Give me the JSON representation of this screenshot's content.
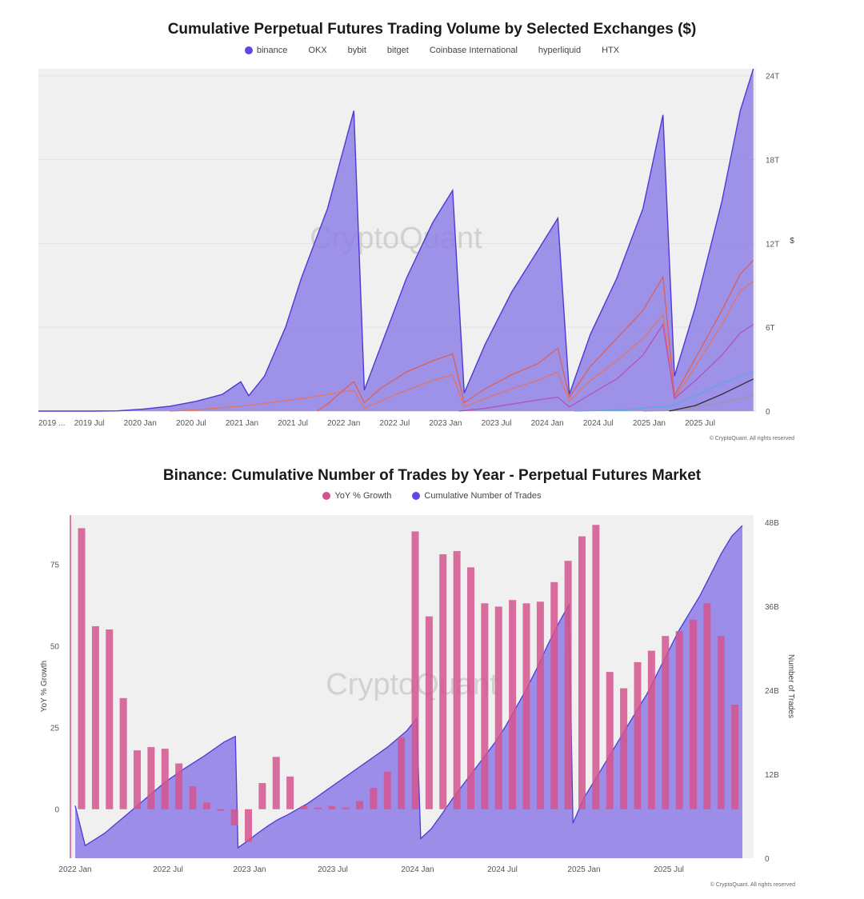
{
  "chart_data": [
    {
      "type": "area",
      "title": "Cumulative Perpetual Futures Trading Volume by Selected Exchanges ($)",
      "legend": [
        "binance",
        "OKX",
        "bybit",
        "bitget",
        "Coinbase International",
        "hyperliquid",
        "HTX"
      ],
      "x_tick_labels": [
        "2019 ...",
        "2019 Jul",
        "2020 Jan",
        "2020 Jul",
        "2021 Jan",
        "2021 Jul",
        "2022 Jan",
        "2022 Jul",
        "2023 Jan",
        "2023 Jul",
        "2024 Jan",
        "2024 Jul",
        "2025 Jan",
        "2025 Jul"
      ],
      "y_tick_labels": [
        "0",
        "6T",
        "12T",
        "18T",
        "24T"
      ],
      "ylim": [
        0,
        24.5
      ],
      "ylabel": "$",
      "watermark": "CryptoQuant",
      "credit": "© CryptoQuant. All rights reserved",
      "x_range": [
        0,
        13.65
      ],
      "series": [
        {
          "name": "binance",
          "color": "#5b48e6",
          "type": "area",
          "points": [
            [
              0,
              0
            ],
            [
              1,
              0
            ],
            [
              1.5,
              0.02
            ],
            [
              2,
              0.15
            ],
            [
              2.5,
              0.35
            ],
            [
              3,
              0.7
            ],
            [
              3.5,
              1.2
            ],
            [
              3.85,
              2.1
            ],
            [
              4,
              1.1
            ],
            [
              4.3,
              2.5
            ],
            [
              4.7,
              6
            ],
            [
              5,
              9.5
            ],
            [
              5.5,
              14.5
            ],
            [
              6,
              21.5
            ],
            [
              6.2,
              1.5
            ],
            [
              6.5,
              4.5
            ],
            [
              7,
              9.5
            ],
            [
              7.5,
              13.5
            ],
            [
              7.88,
              15.8
            ],
            [
              8.1,
              1.3
            ],
            [
              8.5,
              4.8
            ],
            [
              9,
              8.5
            ],
            [
              9.5,
              11.5
            ],
            [
              9.88,
              13.8
            ],
            [
              10.1,
              1.2
            ],
            [
              10.5,
              5.5
            ],
            [
              11,
              9.5
            ],
            [
              11.5,
              14.5
            ],
            [
              11.88,
              21.2
            ],
            [
              12.1,
              2.5
            ],
            [
              12.5,
              7.5
            ],
            [
              13,
              15
            ],
            [
              13.35,
              21.5
            ],
            [
              13.6,
              24.5
            ]
          ]
        },
        {
          "name": "OKX",
          "color": "#e05d4f",
          "type": "line",
          "points": [
            [
              5.3,
              0
            ],
            [
              5.5,
              0.5
            ],
            [
              5.8,
              1.5
            ],
            [
              6,
              2.1
            ],
            [
              6.2,
              0.6
            ],
            [
              6.5,
              1.6
            ],
            [
              7,
              2.8
            ],
            [
              7.5,
              3.6
            ],
            [
              7.88,
              4.1
            ],
            [
              8.1,
              0.6
            ],
            [
              8.5,
              1.6
            ],
            [
              9,
              2.6
            ],
            [
              9.5,
              3.4
            ],
            [
              9.88,
              4.5
            ],
            [
              10.1,
              1.0
            ],
            [
              10.5,
              3.2
            ],
            [
              11,
              5.2
            ],
            [
              11.5,
              7.2
            ],
            [
              11.88,
              9.6
            ],
            [
              12.1,
              1.1
            ],
            [
              12.5,
              3.8
            ],
            [
              13,
              7.2
            ],
            [
              13.35,
              9.8
            ],
            [
              13.6,
              10.8
            ]
          ]
        },
        {
          "name": "bybit",
          "color": "#e8735c",
          "type": "line",
          "points": [
            [
              2.5,
              0
            ],
            [
              3,
              0.1
            ],
            [
              4,
              0.4
            ],
            [
              5,
              0.9
            ],
            [
              6,
              1.5
            ],
            [
              6.2,
              0.2
            ],
            [
              6.5,
              0.7
            ],
            [
              7,
              1.5
            ],
            [
              7.5,
              2.2
            ],
            [
              7.88,
              2.6
            ],
            [
              8.1,
              0.3
            ],
            [
              8.5,
              0.9
            ],
            [
              9,
              1.6
            ],
            [
              9.5,
              2.2
            ],
            [
              9.88,
              2.8
            ],
            [
              10.1,
              0.7
            ],
            [
              10.5,
              2.2
            ],
            [
              11,
              3.6
            ],
            [
              11.5,
              5.2
            ],
            [
              11.88,
              6.9
            ],
            [
              12.1,
              0.9
            ],
            [
              12.5,
              3.2
            ],
            [
              13,
              6.2
            ],
            [
              13.35,
              8.6
            ],
            [
              13.6,
              9.3
            ]
          ]
        },
        {
          "name": "bitget",
          "color": "#b44fb8",
          "type": "line",
          "points": [
            [
              8,
              0
            ],
            [
              8.5,
              0.2
            ],
            [
              9,
              0.5
            ],
            [
              9.5,
              0.8
            ],
            [
              9.88,
              1.0
            ],
            [
              10.1,
              0.3
            ],
            [
              10.5,
              1.2
            ],
            [
              11,
              2.3
            ],
            [
              11.5,
              4.0
            ],
            [
              11.88,
              6.2
            ],
            [
              12.1,
              0.9
            ],
            [
              12.5,
              2.2
            ],
            [
              13,
              4.0
            ],
            [
              13.35,
              5.6
            ],
            [
              13.6,
              6.2
            ]
          ]
        },
        {
          "name": "Coinbase International",
          "color": "#9a9a9a",
          "type": "line",
          "points": [
            [
              11.5,
              0
            ],
            [
              12,
              0.05
            ],
            [
              12.5,
              0.3
            ],
            [
              13,
              0.6
            ],
            [
              13.6,
              1.1
            ]
          ]
        },
        {
          "name": "hyperliquid",
          "color": "#2a2a2a",
          "type": "line",
          "points": [
            [
              12,
              0
            ],
            [
              12.5,
              0.4
            ],
            [
              13,
              1.2
            ],
            [
              13.6,
              2.3
            ]
          ]
        },
        {
          "name": "HTX",
          "color": "#5aa9e6",
          "type": "line",
          "points": [
            [
              10.2,
              0
            ],
            [
              10.7,
              0.05
            ],
            [
              11.2,
              0.1
            ],
            [
              11.7,
              0.3
            ],
            [
              12,
              0.3
            ],
            [
              12.5,
              1.1
            ],
            [
              13,
              2.0
            ],
            [
              13.6,
              2.8
            ]
          ]
        }
      ]
    },
    {
      "type": "bar",
      "title": "Binance: Cumulative Number of Trades by Year - Perpetual Futures Market",
      "legend": [
        {
          "name": "YoY % Growth",
          "color": "#d4558e"
        },
        {
          "name": "Cumulative Number of Trades",
          "color": "#5b48e6"
        }
      ],
      "x_tick_labels": [
        "2022 Jan",
        "2022 Jul",
        "2023 Jan",
        "2023 Jul",
        "2024 Jan",
        "2024 Jul",
        "2025 Jan",
        "2025 Jul"
      ],
      "y_left_tick_labels": [
        "0",
        "25",
        "50",
        "75"
      ],
      "y_right_tick_labels": [
        "0",
        "12B",
        "24B",
        "36B",
        "48B"
      ],
      "ylabel_left": "YoY % Growth",
      "ylabel_right": "Number of Trades",
      "ylim_left": [
        -15,
        90
      ],
      "ylim_right": [
        0,
        49
      ],
      "watermark": "CryptoQuant",
      "credit": "© CryptoQuant. All rights reserved",
      "bars_yoy_growth": [
        86,
        56,
        55,
        34,
        18,
        19,
        18.5,
        14,
        7,
        2,
        -0.5,
        -5,
        -10,
        8,
        16,
        10,
        1,
        0.5,
        1,
        0.5,
        2.5,
        6.5,
        11.5,
        22,
        85,
        59,
        78,
        79,
        74,
        63,
        62,
        64,
        63,
        63.5,
        69.5,
        76,
        83.5,
        87,
        42,
        37,
        45,
        48.5,
        53,
        54.5,
        58,
        63,
        53,
        32
      ],
      "area_cumulative_trades_b": [
        7.5,
        1.8,
        2.7,
        3.6,
        4.8,
        6.0,
        7.2,
        8.4,
        9.6,
        10.8,
        11.8,
        12.8,
        13.7,
        14.6,
        15.6,
        16.6,
        17.4,
        1.5,
        2.5,
        3.6,
        4.6,
        5.5,
        6.2,
        7.0,
        7.8,
        8.8,
        9.8,
        10.8,
        11.8,
        12.8,
        13.8,
        14.8,
        15.8,
        17.0,
        18.2,
        20.0,
        2.8,
        4.2,
        6.3,
        8.5,
        10.5,
        12.5,
        14.5,
        16.5,
        18.8,
        21.5,
        24.2,
        27.2,
        30.5,
        33.5,
        36.2,
        5.0,
        8.5,
        11.0,
        13.5,
        16.0,
        18.5,
        21.0,
        23.5,
        26.5,
        29.5,
        32.5,
        35.0,
        37.5,
        40.5,
        43.5,
        46.0,
        47.5
      ],
      "area_x_breaks": [
        0,
        0.75,
        1.5,
        2.25,
        3,
        3.75,
        4.5,
        5.25,
        6,
        6.75,
        7.5,
        8.25,
        9,
        9.75,
        10.5,
        11.25,
        12.1,
        12.3,
        13.05,
        13.8,
        14.55,
        15.3,
        16.05,
        16.8,
        17.55,
        18.3,
        19.05,
        19.8,
        20.55,
        21.3,
        22.05,
        22.8,
        23.55,
        24.3,
        25.05,
        25.8,
        26.1,
        26.9,
        27.7,
        28.5,
        29.3,
        30.1,
        30.9,
        31.7,
        32.5,
        33.3,
        34.1,
        34.9,
        35.7,
        36.5,
        37.3,
        37.6,
        38.4,
        39.2,
        40.0,
        40.8,
        41.6,
        42.4,
        43.2,
        44.0,
        44.8,
        45.6,
        46.4,
        47.2,
        48.0,
        48.8,
        49.6,
        50.4
      ]
    }
  ]
}
